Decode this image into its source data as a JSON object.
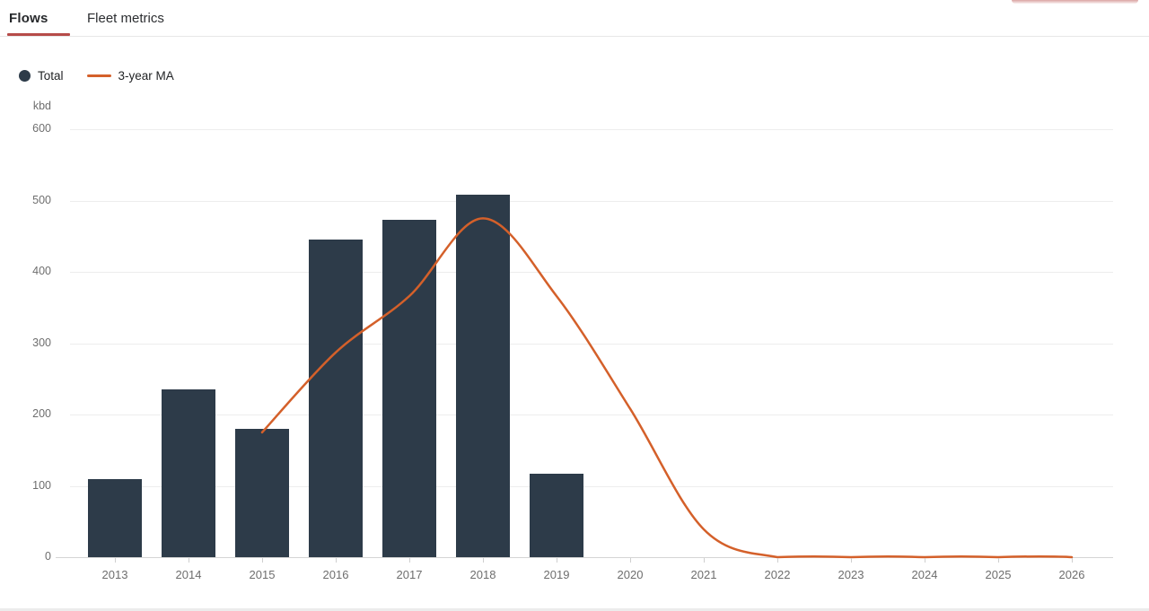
{
  "tabs": [
    {
      "label": "Flows",
      "active": true
    },
    {
      "label": "Fleet metrics",
      "active": false
    }
  ],
  "accent_colors": {
    "tab_underline_red": "#b64b49",
    "bar_navy": "#2d3b49",
    "ma_orange": "#d4602a"
  },
  "legend": [
    {
      "label": "Total",
      "swatch": "dot",
      "color": "#2d3b49"
    },
    {
      "label": "3-year MA",
      "swatch": "line",
      "color": "#d4602a"
    }
  ],
  "chart_data": {
    "type": "bar",
    "title": "",
    "xlabel": "",
    "ylabel": "kbd",
    "categories": [
      "2013",
      "2014",
      "2015",
      "2016",
      "2017",
      "2018",
      "2019",
      "2020",
      "2021",
      "2022",
      "2023",
      "2024",
      "2025",
      "2026"
    ],
    "series": [
      {
        "name": "Total",
        "type": "bar",
        "color": "#2d3b49",
        "values": [
          110,
          235,
          180,
          445,
          473,
          508,
          117,
          0,
          0,
          0,
          0,
          0,
          0,
          0
        ]
      },
      {
        "name": "3-year MA",
        "type": "spline",
        "color": "#d4602a",
        "values": [
          null,
          null,
          175,
          287,
          366,
          475,
          366,
          208,
          39,
          0,
          0,
          0,
          0,
          0
        ]
      }
    ],
    "ylim": [
      0,
      600
    ],
    "yticks": [
      0,
      100,
      200,
      300,
      400,
      500,
      600
    ],
    "grid": true,
    "legend_position": "top-left"
  }
}
